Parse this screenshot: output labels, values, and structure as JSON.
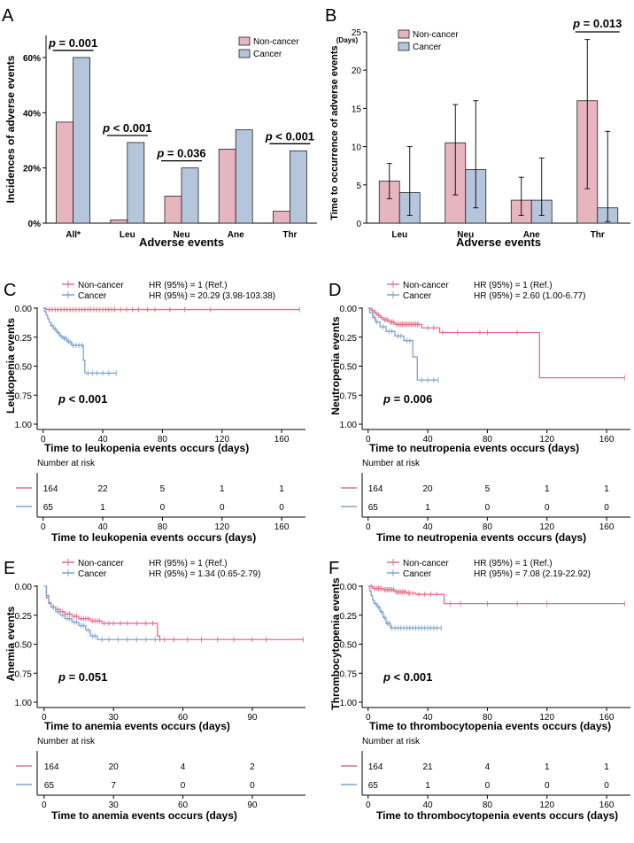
{
  "colors": {
    "noncancer": "#e07088",
    "cancer": "#7ea3cc",
    "nc_fill": "#e6b5c0",
    "c_fill": "#b5c5dc"
  },
  "chart_data": [
    {
      "panel": "A",
      "type": "bar",
      "ylabel": "Incidences of adverse events",
      "xlabel": "Adverse events",
      "categories": [
        "All*",
        "Leu",
        "Neu",
        "Ane",
        "Thr"
      ],
      "yticks": [
        "0%",
        "20%",
        "40%",
        "60%"
      ],
      "ylim": [
        0,
        68
      ],
      "series": [
        {
          "name": "Non-cancer",
          "values": [
            36.6,
            1.2,
            9.8,
            26.8,
            4.3
          ]
        },
        {
          "name": "Cancer",
          "values": [
            60,
            29.2,
            20,
            33.8,
            26.2
          ]
        }
      ],
      "pvalues": [
        {
          "category": "All*",
          "label": "p = 0.001"
        },
        {
          "category": "Leu",
          "label": "p < 0.001"
        },
        {
          "category": "Neu",
          "label": "p = 0.036"
        },
        {
          "category": "Thr",
          "label": "p < 0.001"
        }
      ],
      "legend": [
        "Non-cancer",
        "Cancer"
      ]
    },
    {
      "panel": "B",
      "type": "bar",
      "ylabel": "Time to occurrence of adverse events",
      "yunit": "(Days)",
      "xlabel": "Adverse events",
      "categories": [
        "Leu",
        "Neu",
        "Ane",
        "Thr"
      ],
      "yticks": [
        "0",
        "5",
        "10",
        "15",
        "20",
        "25"
      ],
      "ylim": [
        0,
        25
      ],
      "series": [
        {
          "name": "Non-cancer",
          "values": [
            5.5,
            10.5,
            3,
            16
          ],
          "err_low": [
            3.2,
            3.7,
            1,
            4.5
          ],
          "err_high": [
            7.8,
            15.5,
            6,
            24
          ]
        },
        {
          "name": "Cancer",
          "values": [
            4,
            7,
            3,
            2
          ],
          "err_low": [
            1,
            2,
            1,
            0.2
          ],
          "err_high": [
            10,
            16,
            8.5,
            12
          ]
        }
      ],
      "pvalues": [
        {
          "category": "Thr",
          "label": "p = 0.013"
        }
      ],
      "legend": [
        "Non-cancer",
        "Cancer"
      ]
    },
    {
      "panel": "C",
      "type": "line",
      "ylabel": "Leukopenia events",
      "xlabel": "Time to leukopenia events occurs (days)",
      "xticks": [
        "0",
        "40",
        "80",
        "120",
        "160"
      ],
      "xlim": [
        -4,
        176
      ],
      "yticks": [
        "0.00",
        "0.25",
        "0.50",
        "0.75",
        "1.00"
      ],
      "legend": [
        "Non-cancer",
        "Cancer"
      ],
      "hr": [
        "HR (95%) = 1 (Ref.)",
        "HR (95%) = 20.29 (3.98-103.38)"
      ],
      "pvalue": "p < 0.001",
      "series": [
        {
          "name": "Non-cancer",
          "steps": [
            [
              0,
              0
            ],
            [
              2,
              0.012
            ],
            [
              172,
              0.012
            ]
          ],
          "censor": [
            4,
            6,
            8,
            10,
            12,
            14,
            16,
            18,
            20,
            22,
            24,
            26,
            28,
            30,
            32,
            34,
            36,
            38,
            40,
            42,
            44,
            46,
            48,
            52,
            56,
            60,
            64,
            70,
            75,
            85,
            95,
            112,
            172
          ]
        },
        {
          "name": "Cancer",
          "steps": [
            [
              0,
              0
            ],
            [
              1,
              0.03
            ],
            [
              2,
              0.06
            ],
            [
              3,
              0.09
            ],
            [
              4,
              0.12
            ],
            [
              5,
              0.15
            ],
            [
              7,
              0.18
            ],
            [
              9,
              0.21
            ],
            [
              11,
              0.24
            ],
            [
              13,
              0.26
            ],
            [
              16,
              0.29
            ],
            [
              19,
              0.32
            ],
            [
              27,
              0.45
            ],
            [
              28,
              0.56
            ],
            [
              49,
              0.56
            ]
          ],
          "censor": [
            6,
            8,
            10,
            12,
            14,
            15,
            17,
            18,
            20,
            22,
            24,
            26,
            30,
            33,
            36,
            40,
            44,
            49
          ]
        }
      ],
      "risk_table": {
        "title": "Number at risk",
        "rows": [
          [
            "164",
            "22",
            "5",
            "1",
            "1"
          ],
          [
            "65",
            "1",
            "0",
            "0",
            "0"
          ]
        ]
      }
    },
    {
      "panel": "D",
      "type": "line",
      "ylabel": "Neutropenia events",
      "xlabel": "Time to neutropenia events occurs (days)",
      "xticks": [
        "0",
        "40",
        "80",
        "120",
        "160"
      ],
      "xlim": [
        -4,
        176
      ],
      "yticks": [
        "0.00",
        "0.25",
        "0.50",
        "0.75",
        "1.00"
      ],
      "legend": [
        "Non-cancer",
        "Cancer"
      ],
      "hr": [
        "HR (95%) = 1 (Ref.)",
        "HR (95%) = 2.60 (1.00-6.77)"
      ],
      "pvalue": "p = 0.006",
      "series": [
        {
          "name": "Non-cancer",
          "steps": [
            [
              0,
              0
            ],
            [
              2,
              0.02
            ],
            [
              4,
              0.04
            ],
            [
              6,
              0.06
            ],
            [
              8,
              0.08
            ],
            [
              10,
              0.1
            ],
            [
              14,
              0.12
            ],
            [
              18,
              0.14
            ],
            [
              35,
              0.14
            ],
            [
              36,
              0.17
            ],
            [
              48,
              0.21
            ],
            [
              114,
              0.21
            ],
            [
              115,
              0.6
            ],
            [
              172,
              0.6
            ]
          ],
          "censor": [
            3,
            5,
            7,
            9,
            11,
            12,
            13,
            15,
            16,
            17,
            19,
            20,
            21,
            22,
            23,
            24,
            25,
            26,
            27,
            28,
            29,
            30,
            31,
            32,
            33,
            34,
            40,
            44,
            50,
            60,
            75,
            80,
            100,
            172
          ]
        },
        {
          "name": "Cancer",
          "steps": [
            [
              0,
              0
            ],
            [
              1,
              0.04
            ],
            [
              3,
              0.08
            ],
            [
              5,
              0.12
            ],
            [
              8,
              0.16
            ],
            [
              12,
              0.2
            ],
            [
              18,
              0.24
            ],
            [
              24,
              0.28
            ],
            [
              30,
              0.42
            ],
            [
              33,
              0.62
            ],
            [
              47,
              0.62
            ]
          ],
          "censor": [
            4,
            6,
            10,
            14,
            16,
            20,
            22,
            26,
            28,
            36,
            40,
            44,
            47
          ]
        }
      ],
      "risk_table": {
        "title": "Number at risk",
        "rows": [
          [
            "164",
            "20",
            "5",
            "1",
            "1"
          ],
          [
            "65",
            "1",
            "0",
            "0",
            "0"
          ]
        ]
      }
    },
    {
      "panel": "E",
      "type": "line",
      "ylabel": "Anemia events",
      "xlabel": "Time to anemia events occurs (days)",
      "xticks": [
        "0",
        "30",
        "60",
        "90"
      ],
      "xlim": [
        -3,
        113
      ],
      "yticks": [
        "0.00",
        "0.25",
        "0.50",
        "0.75",
        "1.00"
      ],
      "legend": [
        "Non-cancer",
        "Cancer"
      ],
      "hr": [
        "HR (95%) = 1 (Ref.)",
        "HR (95%) = 1.34 (0.65-2.79)"
      ],
      "pvalue": "p = 0.051",
      "series": [
        {
          "name": "Non-cancer",
          "steps": [
            [
              0,
              0
            ],
            [
              1,
              0.1
            ],
            [
              2,
              0.15
            ],
            [
              3,
              0.18
            ],
            [
              5,
              0.2
            ],
            [
              7,
              0.22
            ],
            [
              9,
              0.24
            ],
            [
              12,
              0.26
            ],
            [
              15,
              0.28
            ],
            [
              20,
              0.3
            ],
            [
              25,
              0.32
            ],
            [
              48,
              0.32
            ],
            [
              49,
              0.43
            ],
            [
              50,
              0.46
            ],
            [
              112,
              0.46
            ]
          ],
          "censor": [
            4,
            6,
            8,
            10,
            11,
            13,
            14,
            16,
            17,
            18,
            19,
            21,
            22,
            23,
            24,
            26,
            28,
            30,
            33,
            36,
            40,
            44,
            47,
            52,
            56,
            62,
            68,
            75,
            82,
            90,
            96,
            112
          ]
        },
        {
          "name": "Cancer",
          "steps": [
            [
              0,
              0
            ],
            [
              1,
              0.08
            ],
            [
              2,
              0.14
            ],
            [
              3,
              0.18
            ],
            [
              5,
              0.22
            ],
            [
              7,
              0.25
            ],
            [
              9,
              0.28
            ],
            [
              12,
              0.31
            ],
            [
              15,
              0.34
            ],
            [
              18,
              0.38
            ],
            [
              20,
              0.43
            ],
            [
              23,
              0.46
            ],
            [
              50,
              0.46
            ]
          ],
          "censor": [
            4,
            6,
            8,
            10,
            11,
            13,
            14,
            16,
            17,
            19,
            21,
            22,
            25,
            28,
            32,
            36,
            40,
            44,
            48,
            50
          ]
        }
      ],
      "risk_table": {
        "title": "Number at risk",
        "rows": [
          [
            "164",
            "20",
            "4",
            "2"
          ],
          [
            "65",
            "7",
            "0",
            "0"
          ]
        ]
      }
    },
    {
      "panel": "F",
      "type": "line",
      "ylabel": "Thrombocytopenia events",
      "xlabel": "Time to thrombocytopenia events occurs (days)",
      "xticks": [
        "0",
        "40",
        "80",
        "120",
        "160"
      ],
      "xlim": [
        -4,
        176
      ],
      "yticks": [
        "0.00",
        "0.25",
        "0.50",
        "0.75",
        "1.00"
      ],
      "legend": [
        "Non-cancer",
        "Cancer"
      ],
      "hr": [
        "HR (95%) = 1 (Ref.)",
        "HR (95%) = 7.08 (2.19-22.92)"
      ],
      "pvalue": "p < 0.001",
      "series": [
        {
          "name": "Non-cancer",
          "steps": [
            [
              0,
              0
            ],
            [
              3,
              0.02
            ],
            [
              10,
              0.03
            ],
            [
              18,
              0.05
            ],
            [
              26,
              0.06
            ],
            [
              32,
              0.07
            ],
            [
              50,
              0.07
            ],
            [
              51,
              0.15
            ],
            [
              172,
              0.15
            ]
          ],
          "censor": [
            2,
            4,
            5,
            6,
            7,
            8,
            9,
            11,
            12,
            13,
            14,
            15,
            16,
            17,
            19,
            20,
            21,
            22,
            23,
            24,
            25,
            27,
            28,
            30,
            34,
            38,
            42,
            46,
            55,
            62,
            80,
            100,
            120,
            172
          ]
        },
        {
          "name": "Cancer",
          "steps": [
            [
              0,
              0
            ],
            [
              1,
              0.04
            ],
            [
              2,
              0.08
            ],
            [
              3,
              0.12
            ],
            [
              4,
              0.15
            ],
            [
              6,
              0.18
            ],
            [
              8,
              0.22
            ],
            [
              10,
              0.27
            ],
            [
              12,
              0.32
            ],
            [
              15,
              0.36
            ],
            [
              49,
              0.36
            ]
          ],
          "censor": [
            5,
            7,
            9,
            11,
            13,
            14,
            16,
            18,
            20,
            22,
            24,
            26,
            28,
            30,
            32,
            34,
            36,
            38,
            40,
            42,
            44,
            46,
            49
          ]
        }
      ],
      "risk_table": {
        "title": "Number at risk",
        "rows": [
          [
            "164",
            "21",
            "4",
            "1",
            "1"
          ],
          [
            "65",
            "1",
            "0",
            "0",
            "0"
          ]
        ]
      }
    }
  ]
}
